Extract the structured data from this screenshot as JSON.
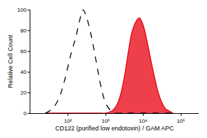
{
  "chart_data": {
    "type": "line",
    "xlabel": "CD122 (purified low endotoxin) / GAM APC",
    "ylabel": "Relative Cell Count",
    "log": "x",
    "grid": false,
    "x": [
      25,
      32,
      40,
      50,
      63,
      79,
      100,
      126,
      158,
      200,
      251,
      316,
      398,
      501,
      631,
      794,
      1000,
      1259,
      1585,
      1995,
      2512,
      3162,
      3981,
      5012,
      6310,
      7943,
      10000,
      12589,
      15849,
      19953,
      25119,
      31623,
      39811,
      50119,
      63096
    ],
    "series": [
      {
        "type": "line",
        "color": "#000000",
        "line_style": "dashed",
        "values": [
          0,
          2,
          5,
          10,
          18,
          30,
          45,
          60,
          72,
          88,
          100,
          92,
          78,
          60,
          40,
          22,
          10,
          4,
          1,
          0,
          0,
          0,
          0,
          0,
          0,
          0,
          0,
          0,
          0,
          0,
          0,
          0,
          0,
          0,
          0
        ]
      },
      {
        "type": "area",
        "color": "#e8000d",
        "line_style": "solid",
        "values": [
          0,
          0,
          0,
          0,
          0,
          0,
          0,
          0,
          0,
          0,
          0,
          0,
          0,
          0,
          0,
          0,
          0,
          1,
          3,
          8,
          18,
          35,
          58,
          78,
          88,
          92,
          85,
          70,
          52,
          35,
          20,
          10,
          4,
          2,
          0
        ]
      }
    ],
    "xlim": [
      10,
      300000
    ],
    "xticks": [
      {
        "value": 100,
        "label": "10²"
      },
      {
        "value": 1000,
        "label": "10³"
      },
      {
        "value": 10000,
        "label": "10⁴"
      },
      {
        "value": 100000,
        "label": "10⁵"
      }
    ],
    "ylim": [
      0,
      100
    ],
    "yticks": [
      0,
      20,
      40,
      60,
      80,
      100
    ]
  }
}
